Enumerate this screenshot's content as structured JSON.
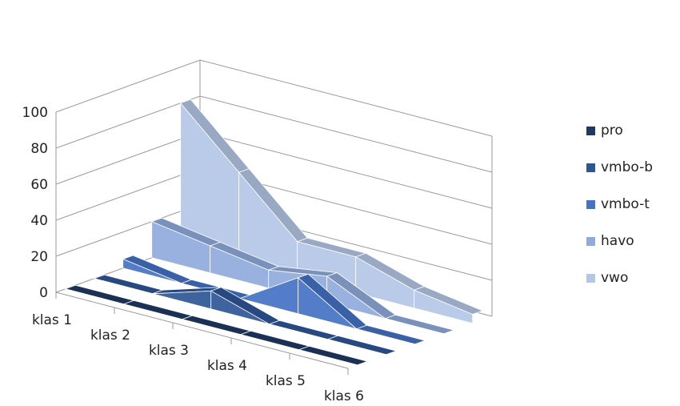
{
  "chart_data": {
    "type": "3d-ribbon-line",
    "categories": [
      "klas 1",
      "klas 2",
      "klas 3",
      "klas 4",
      "klas 5",
      "klas 6"
    ],
    "series": [
      {
        "name": "pro",
        "color": "#1f3864",
        "values": [
          0,
          0,
          0,
          0,
          0,
          0
        ]
      },
      {
        "name": "vmbo-b",
        "color": "#2e5597",
        "values": [
          0,
          0,
          10,
          0,
          0,
          0
        ]
      },
      {
        "name": "vmbo-t",
        "color": "#4472c4",
        "values": [
          5,
          0,
          0,
          20,
          0,
          0
        ]
      },
      {
        "name": "havo",
        "color": "#8faadc",
        "values": [
          20,
          15,
          10,
          15,
          0,
          0
        ]
      },
      {
        "name": "vwo",
        "color": "#b4c7e7",
        "values": [
          80,
          50,
          20,
          20,
          10,
          5
        ]
      }
    ],
    "ylim": [
      0,
      100
    ],
    "yticks": [
      "0",
      "20",
      "40",
      "60",
      "80",
      "100"
    ],
    "grid": true,
    "legend_position": "right"
  }
}
